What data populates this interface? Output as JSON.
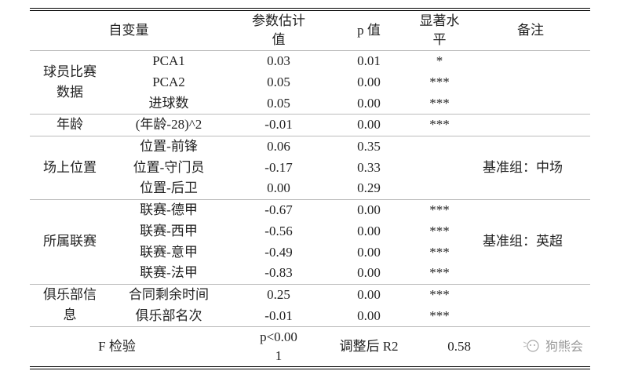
{
  "header": {
    "variable": "自变量",
    "estimate": "参数估计值",
    "p": "p 值",
    "significance": "显著水平",
    "note": "备注"
  },
  "groups": [
    {
      "name": "球员比赛数据",
      "note": "",
      "rows": [
        {
          "variable": "PCA1",
          "estimate": "0.03",
          "p": "0.01",
          "sig": "*"
        },
        {
          "variable": "PCA2",
          "estimate": "0.05",
          "p": "0.00",
          "sig": "***"
        },
        {
          "variable": "进球数",
          "estimate": "0.05",
          "p": "0.00",
          "sig": "***"
        }
      ]
    },
    {
      "name": "年龄",
      "note": "",
      "rows": [
        {
          "variable": "(年龄-28)^2",
          "estimate": "-0.01",
          "p": "0.00",
          "sig": "***"
        }
      ]
    },
    {
      "name": "场上位置",
      "note": "基准组：中场",
      "rows": [
        {
          "variable": "位置-前锋",
          "estimate": "0.06",
          "p": "0.35",
          "sig": ""
        },
        {
          "variable": "位置-守门员",
          "estimate": "-0.17",
          "p": "0.33",
          "sig": ""
        },
        {
          "variable": "位置-后卫",
          "estimate": "0.00",
          "p": "0.29",
          "sig": ""
        }
      ]
    },
    {
      "name": "所属联赛",
      "note": "基准组：英超",
      "rows": [
        {
          "variable": "联赛-德甲",
          "estimate": "-0.67",
          "p": "0.00",
          "sig": "***"
        },
        {
          "variable": "联赛-西甲",
          "estimate": "-0.56",
          "p": "0.00",
          "sig": "***"
        },
        {
          "variable": "联赛-意甲",
          "estimate": "-0.49",
          "p": "0.00",
          "sig": "***"
        },
        {
          "variable": "联赛-法甲",
          "estimate": "-0.83",
          "p": "0.00",
          "sig": "***"
        }
      ]
    },
    {
      "name": "俱乐部信息",
      "note": "",
      "rows": [
        {
          "variable": "合同剩余时间",
          "estimate": "0.25",
          "p": "0.00",
          "sig": "***"
        },
        {
          "variable": "俱乐部名次",
          "estimate": "-0.01",
          "p": "0.00",
          "sig": "***"
        }
      ]
    }
  ],
  "footer": {
    "f_label": "F 检验",
    "f_value": "p<0.001",
    "r2_label": "调整后 R2",
    "r2_value": "0.58"
  },
  "watermark": {
    "text": "狗熊会",
    "icon": "bear-logo-icon"
  }
}
